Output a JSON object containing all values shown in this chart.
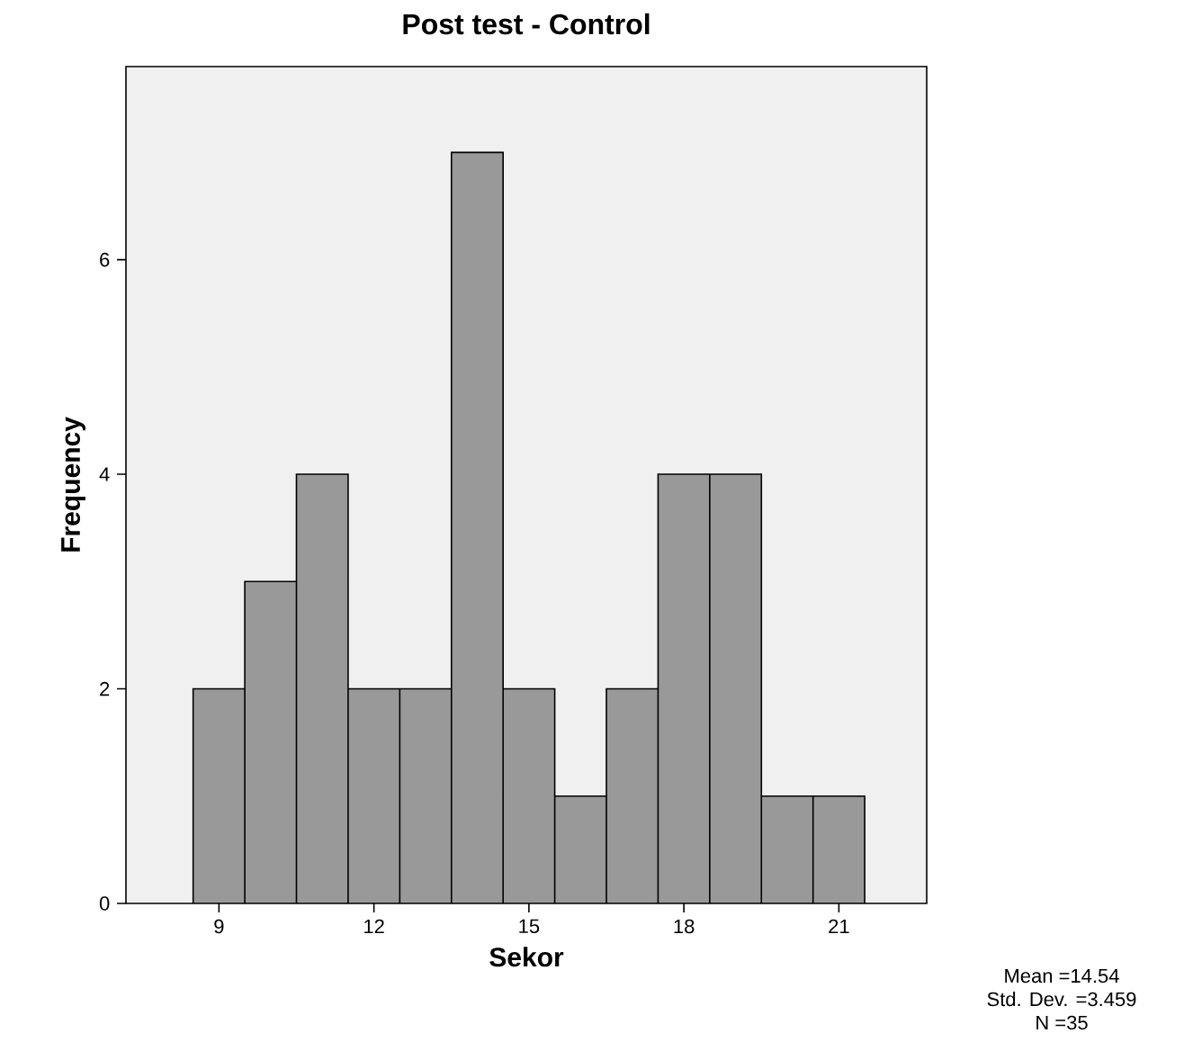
{
  "chart_data": {
    "type": "histogram",
    "title": "Post test - Control",
    "xlabel": "Sekor",
    "ylabel": "Frequency",
    "bins": [
      8.5,
      9.5,
      10.5,
      11.5,
      12.5,
      13.5,
      14.5,
      15.5,
      16.5,
      17.5,
      18.5,
      19.5,
      20.5,
      21.5
    ],
    "values": [
      2,
      3,
      4,
      2,
      2,
      7,
      2,
      1,
      2,
      4,
      4,
      1,
      1
    ],
    "color": "#999999",
    "xlim": [
      7.2,
      22.7
    ],
    "ylim": [
      0,
      7.8
    ],
    "xticks": [
      9,
      12,
      15,
      18,
      21
    ],
    "yticks": [
      0,
      2,
      4,
      6
    ],
    "annotations": [
      "Mean =14.54",
      "Std. Dev. =3.459",
      "N =35"
    ]
  }
}
